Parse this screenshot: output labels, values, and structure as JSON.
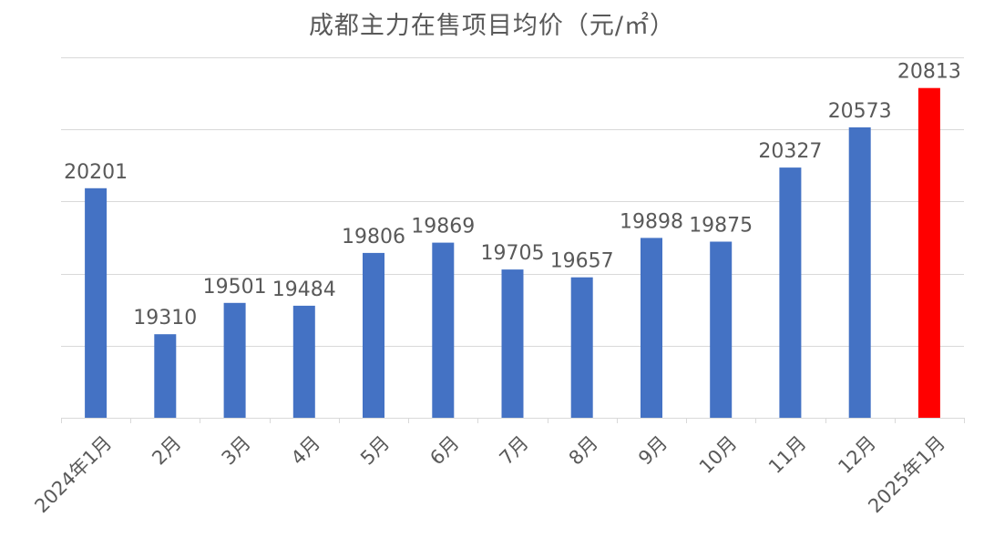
{
  "chart_data": {
    "type": "bar",
    "title": "成都主力在售项目均价（元/㎡）",
    "xlabel": "",
    "ylabel": "",
    "categories": [
      "2024年1月",
      "2月",
      "3月",
      "4月",
      "5月",
      "6月",
      "7月",
      "8月",
      "9月",
      "10月",
      "11月",
      "12月",
      "2025年1月"
    ],
    "values": [
      20201,
      19310,
      19501,
      19484,
      19806,
      19869,
      19705,
      19657,
      19898,
      19875,
      20327,
      20573,
      20813
    ],
    "ylim": [
      18800,
      21000
    ],
    "yticks": [
      18800,
      19240,
      19680,
      20120,
      20560,
      21000
    ],
    "y_axis_labels_shown": false,
    "grid": true,
    "legend": "none",
    "colors": {
      "default_bar": "#4472c4",
      "highlight_bar": "#ff0000",
      "text": "#595959",
      "grid": "#d9d9d9"
    },
    "highlight_index": 12
  }
}
